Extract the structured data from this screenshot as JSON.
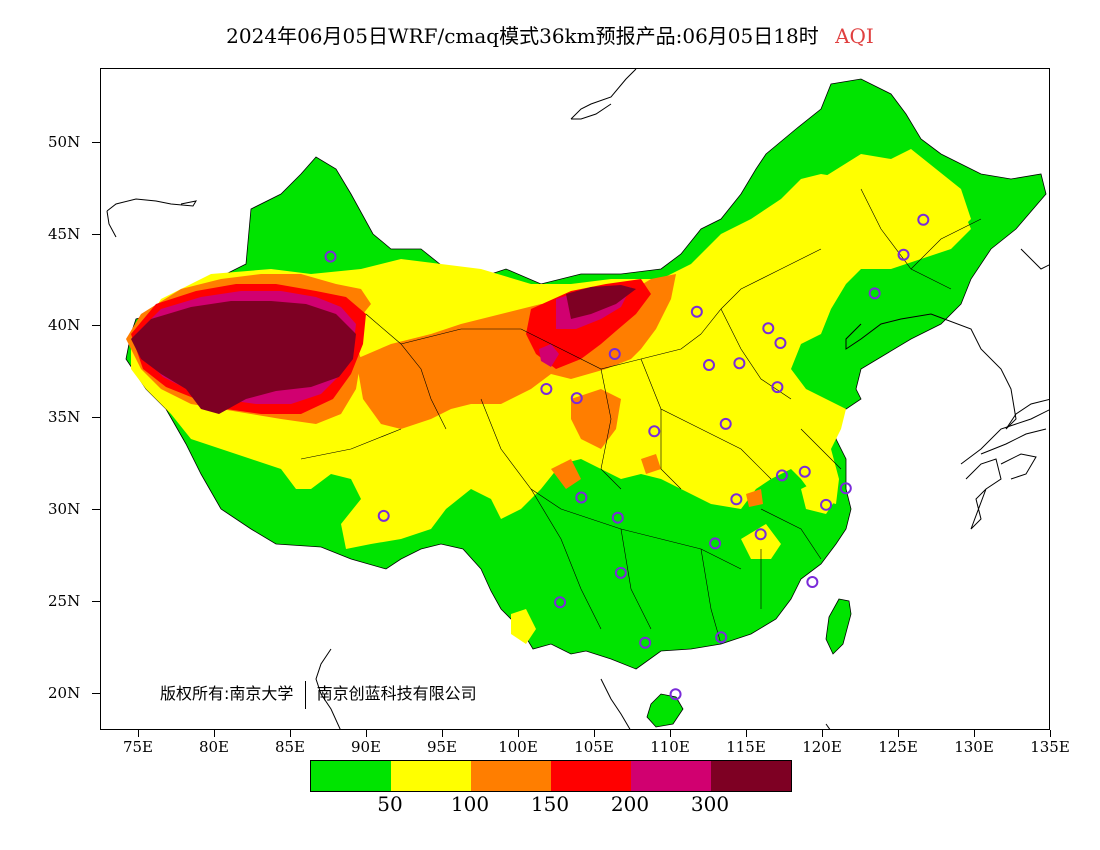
{
  "title": {
    "main": "2024年06月05日WRF/cmaq模式36km预报产品:06月05日18时",
    "variable": "AQI"
  },
  "axes": {
    "lat_labels": [
      "50N",
      "45N",
      "40N",
      "35N",
      "30N",
      "25N",
      "20N"
    ],
    "lon_labels": [
      "75E",
      "80E",
      "85E",
      "90E",
      "95E",
      "100E",
      "105E",
      "110E",
      "115E",
      "120E",
      "125E",
      "130E",
      "135E"
    ],
    "lon_range": [
      72.5,
      135
    ],
    "lat_range": [
      18,
      54
    ]
  },
  "copyright": {
    "left": "版权所有:南京大学",
    "right": "南京创蓝科技有限公司"
  },
  "legend": {
    "colors": [
      "#00e400",
      "#ffff00",
      "#ff7e00",
      "#ff0000",
      "#d10070",
      "#7e0023"
    ],
    "labels": [
      "50",
      "100",
      "150",
      "200",
      "300"
    ]
  },
  "stations": [
    {
      "lon": 87.6,
      "lat": 43.8
    },
    {
      "lon": 91.1,
      "lat": 29.7
    },
    {
      "lon": 101.8,
      "lat": 36.6
    },
    {
      "lon": 103.8,
      "lat": 36.1
    },
    {
      "lon": 106.3,
      "lat": 38.5
    },
    {
      "lon": 111.7,
      "lat": 40.8
    },
    {
      "lon": 112.5,
      "lat": 37.9
    },
    {
      "lon": 114.5,
      "lat": 38.0
    },
    {
      "lon": 116.4,
      "lat": 39.9
    },
    {
      "lon": 117.2,
      "lat": 39.1
    },
    {
      "lon": 117.0,
      "lat": 36.7
    },
    {
      "lon": 113.6,
      "lat": 34.7
    },
    {
      "lon": 108.9,
      "lat": 34.3
    },
    {
      "lon": 104.1,
      "lat": 30.7
    },
    {
      "lon": 106.5,
      "lat": 29.6
    },
    {
      "lon": 106.7,
      "lat": 26.6
    },
    {
      "lon": 102.7,
      "lat": 25.0
    },
    {
      "lon": 108.3,
      "lat": 22.8
    },
    {
      "lon": 113.3,
      "lat": 23.1
    },
    {
      "lon": 110.3,
      "lat": 20.0
    },
    {
      "lon": 112.9,
      "lat": 28.2
    },
    {
      "lon": 115.9,
      "lat": 28.7
    },
    {
      "lon": 114.3,
      "lat": 30.6
    },
    {
      "lon": 117.3,
      "lat": 31.9
    },
    {
      "lon": 118.8,
      "lat": 32.1
    },
    {
      "lon": 120.2,
      "lat": 30.3
    },
    {
      "lon": 121.5,
      "lat": 31.2
    },
    {
      "lon": 119.3,
      "lat": 26.1
    },
    {
      "lon": 123.4,
      "lat": 41.8
    },
    {
      "lon": 125.3,
      "lat": 43.9
    },
    {
      "lon": 126.6,
      "lat": 45.8
    }
  ]
}
